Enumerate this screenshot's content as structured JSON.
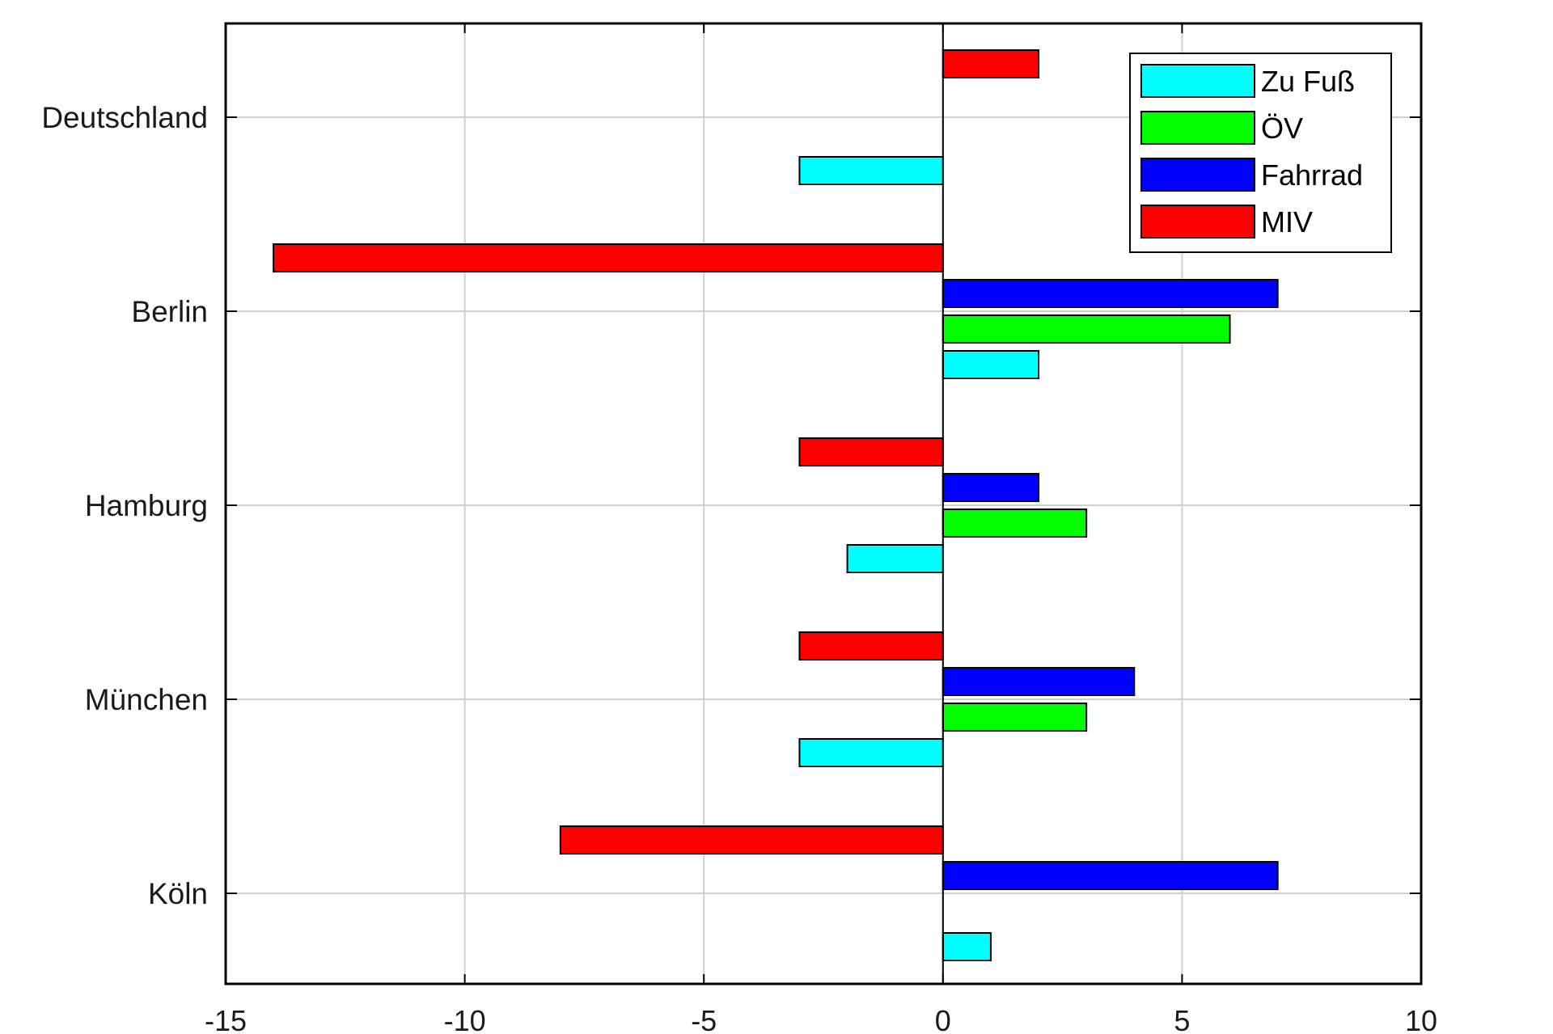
{
  "chart_data": {
    "type": "bar",
    "orientation": "horizontal",
    "categories": [
      "Deutschland",
      "Berlin",
      "Hamburg",
      "München",
      "Köln"
    ],
    "series": [
      {
        "name": "Zu Fuß",
        "color": "#00ffff",
        "values": [
          -3,
          2,
          -2,
          -3,
          1
        ]
      },
      {
        "name": "ÖV",
        "color": "#00ff00",
        "values": [
          0,
          6,
          3,
          3,
          0
        ]
      },
      {
        "name": "Fahrrad",
        "color": "#0000ff",
        "values": [
          0,
          7,
          2,
          4,
          7
        ]
      },
      {
        "name": "MIV",
        "color": "#ff0000",
        "values": [
          2,
          -14,
          -3,
          -3,
          -8
        ]
      }
    ],
    "xlim": [
      -15,
      10
    ],
    "xticks": [
      "-15",
      "-10",
      "-5",
      "0",
      "5",
      "10"
    ],
    "grid": true,
    "legend_position": "top-right",
    "title": "",
    "xlabel": "",
    "ylabel": ""
  }
}
